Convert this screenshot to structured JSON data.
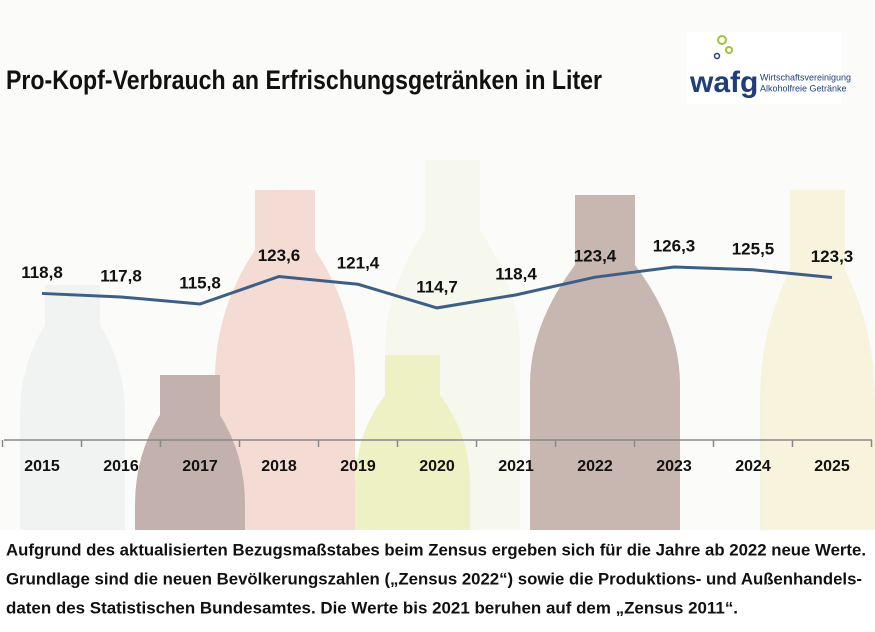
{
  "chart_data": {
    "type": "line",
    "title": "Pro-Kopf-Verbrauch an Erfrischungsgetränken in Liter",
    "categories": [
      "2015",
      "2016",
      "2017",
      "2018",
      "2019",
      "2020",
      "2021",
      "2022",
      "2023",
      "2024",
      "2025"
    ],
    "series": [
      {
        "color": "#3e5f85",
        "values": [
          118.8,
          117.8,
          115.8,
          123.6,
          121.4,
          114.7,
          118.4,
          123.4,
          126.3,
          125.5,
          123.3
        ],
        "value_labels": [
          "118,8",
          "117,8",
          "115,8",
          "123,6",
          "121,4",
          "114,7",
          "118,4",
          "123,4",
          "126,3",
          "125,5",
          "123,3"
        ]
      }
    ]
  },
  "logo": {
    "mark": "wafg",
    "line1": "Wirtschaftsvereinigung",
    "line2": "Alkoholfreie Getränke"
  },
  "footnote": [
    "Aufgrund des aktualisierten Bezugsmaßstabes beim Zensus ergeben sich für die Jahre ab 2022 neue Werte.",
    "Grundlage sind die neuen Bevölkerungszahlen („Zensus 2022“) sowie die Produktions- und Außenhandels-",
    "daten des Statistischen Bundesamtes. Die Werte bis 2021 beruhen auf dem „Zensus 2011“."
  ]
}
